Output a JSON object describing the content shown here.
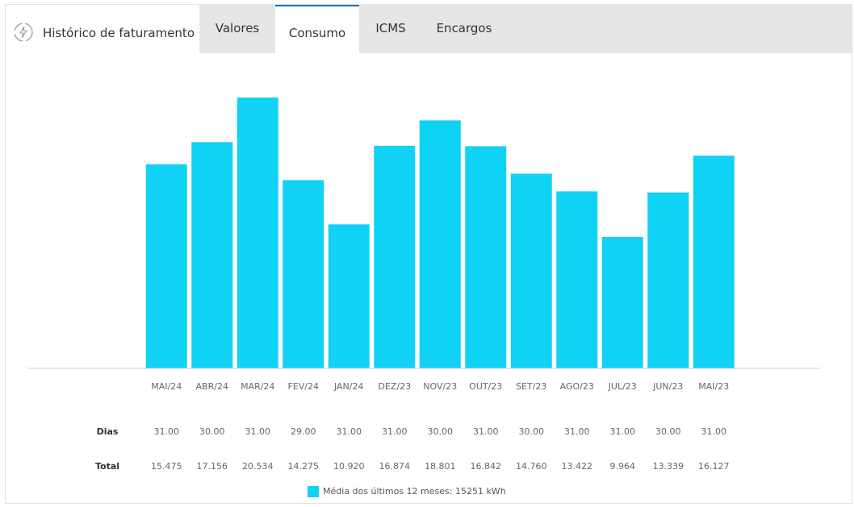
{
  "header": {
    "title": "Histórico de faturamento",
    "tabs": [
      "Valores",
      "Consumo",
      "ICMS",
      "Encargos"
    ],
    "active_tab": 1
  },
  "chart_data": {
    "type": "bar",
    "categories": [
      "MAI/24",
      "ABR/24",
      "MAR/24",
      "FEV/24",
      "JAN/24",
      "DEZ/23",
      "NOV/23",
      "OUT/23",
      "SET/23",
      "AGO/23",
      "JUL/23",
      "JUN/23",
      "MAI/23"
    ],
    "series": [
      {
        "name": "Total",
        "color": "#10d2f5",
        "values": [
          15475,
          17156,
          20534,
          14275,
          10920,
          16874,
          18801,
          16842,
          14760,
          13422,
          9964,
          13339,
          16127
        ],
        "value_labels": [
          "15.475",
          "17.156",
          "20.534",
          "14.275",
          "10.920",
          "16.874",
          "18.801",
          "16.842",
          "14.760",
          "13.422",
          "9.964",
          "13.339",
          "16.127"
        ]
      }
    ],
    "rows": [
      {
        "name": "Dias",
        "values": [
          31,
          30,
          31,
          29,
          31,
          31,
          30,
          31,
          30,
          31,
          31,
          30,
          31
        ],
        "value_labels": [
          "31.00",
          "30.00",
          "31.00",
          "29.00",
          "31.00",
          "31.00",
          "30.00",
          "31.00",
          "30.00",
          "31.00",
          "31.00",
          "30.00",
          "31.00"
        ]
      }
    ],
    "ylim": [
      0,
      21000
    ],
    "legend": "Média dos últimos 12 meses: 15251 kWh"
  }
}
